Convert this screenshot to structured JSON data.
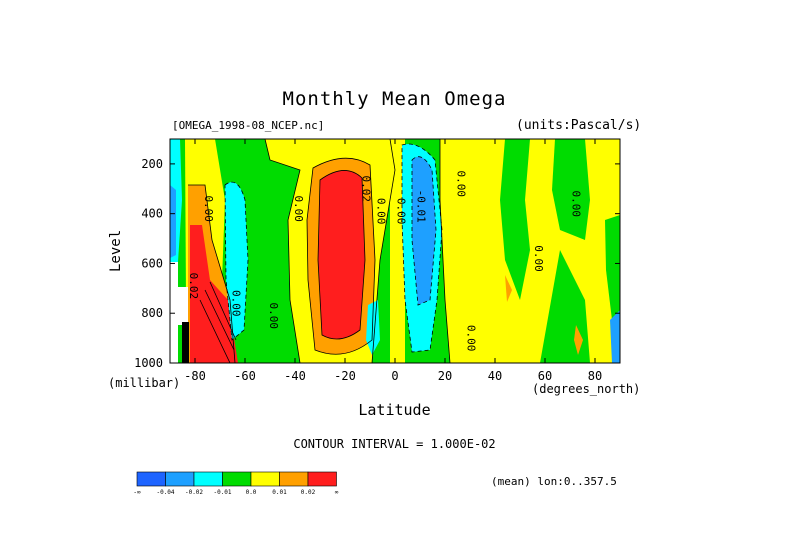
{
  "title": "Monthly Mean Omega",
  "dataset": "[OMEGA_1998-08_NCEP.nc]",
  "units": "(units:Pascal/s)",
  "interval_text": "CONTOUR INTERVAL = 1.000E-02",
  "lon_note": "(mean) lon:0..357.5",
  "chart_data": {
    "type": "heatmap",
    "title": "Monthly Mean Omega",
    "xlabel": "Latitude",
    "xunit": "(degrees_north)",
    "ylabel": "Level",
    "yunit": "(millibar)",
    "xlim": [
      -90,
      90
    ],
    "ylim": [
      1000,
      100
    ],
    "x_ticks": [
      -80,
      -60,
      -40,
      -20,
      0,
      20,
      40,
      60,
      80
    ],
    "y_ticks": [
      200,
      400,
      600,
      800,
      1000
    ],
    "contour_interval": 0.01,
    "levels": [
      "-∞",
      "-0.04",
      "-0.02",
      "-0.01",
      "0.0",
      "0.01",
      "0.02",
      "∞"
    ],
    "colors": [
      "#1e64ff",
      "#1ea0ff",
      "#00ffff",
      "#00dc00",
      "#ffff00",
      "#ffa000",
      "#ff1e1e"
    ],
    "contour_labels": [
      {
        "lat": -82,
        "level": 690,
        "text": "0.02"
      },
      {
        "lat": -76,
        "level": 380,
        "text": "0.00"
      },
      {
        "lat": -65,
        "level": 760,
        "text": "0.00"
      },
      {
        "lat": -50,
        "level": 810,
        "text": "0.00"
      },
      {
        "lat": -40,
        "level": 380,
        "text": "0.00"
      },
      {
        "lat": -13,
        "level": 300,
        "text": "0.02"
      },
      {
        "lat": -7,
        "level": 390,
        "text": "0.00"
      },
      {
        "lat": 1,
        "level": 390,
        "text": "0.00"
      },
      {
        "lat": 9,
        "level": 370,
        "text": "-0.01"
      },
      {
        "lat": 25,
        "level": 280,
        "text": "0.00"
      },
      {
        "lat": 29,
        "level": 900,
        "text": "0.00"
      },
      {
        "lat": 56,
        "level": 580,
        "text": "0.00"
      },
      {
        "lat": 71,
        "level": 360,
        "text": "0.00"
      }
    ],
    "features": [
      {
        "kind": "max",
        "lat": -22,
        "level_range": [
          250,
          950
        ],
        "value": "> 0.02"
      },
      {
        "kind": "min",
        "lat": 10,
        "level_range": [
          150,
          900
        ],
        "value": "< -0.01"
      },
      {
        "kind": "max",
        "lat": -78,
        "level_range": [
          300,
          1000
        ],
        "value": "> 0.02"
      }
    ]
  }
}
